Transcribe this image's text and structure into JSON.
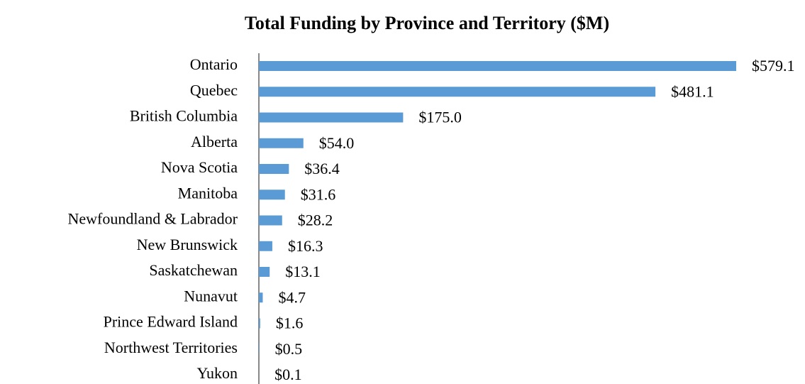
{
  "chart_data": {
    "type": "barh",
    "title": "Total Funding by Province and Territory ($M)",
    "categories": [
      "Ontario",
      "Quebec",
      "British Columbia",
      "Alberta",
      "Nova Scotia",
      "Manitoba",
      "Newfoundland & Labrador",
      "New Brunswick",
      "Saskatchewan",
      "Nunavut",
      "Prince Edward Island",
      "Northwest Territories",
      "Yukon"
    ],
    "values": [
      579.1,
      481.1,
      175.0,
      54.0,
      36.4,
      31.6,
      28.2,
      16.3,
      13.1,
      4.7,
      1.6,
      0.5,
      0.1
    ],
    "value_labels": [
      "$579.1",
      "$481.1",
      "$175.0",
      "$54.0",
      "$36.4",
      "$31.6",
      "$28.2",
      "$16.3",
      "$13.1",
      "$4.7",
      "$1.6",
      "$0.5",
      "$0.1"
    ],
    "color": "#5b9bd5"
  }
}
